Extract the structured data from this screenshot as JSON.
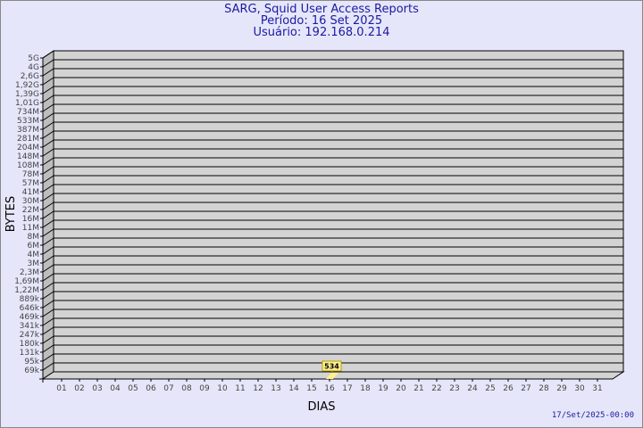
{
  "header": {
    "title": "SARG, Squid User Access Reports",
    "period": "Período: 16 Set 2025",
    "user": "Usuário: 192.168.0.214"
  },
  "footer": {
    "timestamp": "17/Set/2025-00:00"
  },
  "colors": {
    "title": "#1a1aa0",
    "background": "#e6e6fa",
    "plot": "#d3d3d3",
    "bar": "#ffef8f"
  },
  "chart_data": {
    "type": "bar",
    "xlabel": "DIAS",
    "ylabel": "BYTES",
    "y_scale": "log",
    "y_tick_labels": [
      "5G",
      "4G",
      "2,6G",
      "1,92G",
      "1,39G",
      "1,01G",
      "734M",
      "533M",
      "387M",
      "281M",
      "204M",
      "148M",
      "108M",
      "78M",
      "57M",
      "41M",
      "30M",
      "22M",
      "16M",
      "11M",
      "8M",
      "6M",
      "4M",
      "3M",
      "2,3M",
      "1,69M",
      "1,22M",
      "889k",
      "646k",
      "469k",
      "341k",
      "247k",
      "180k",
      "131k",
      "95k",
      "69k"
    ],
    "categories": [
      "01",
      "02",
      "03",
      "04",
      "05",
      "06",
      "07",
      "08",
      "09",
      "10",
      "11",
      "12",
      "13",
      "14",
      "15",
      "16",
      "17",
      "18",
      "19",
      "20",
      "21",
      "22",
      "23",
      "24",
      "25",
      "26",
      "27",
      "28",
      "29",
      "30",
      "31"
    ],
    "values": [
      0,
      0,
      0,
      0,
      0,
      0,
      0,
      0,
      0,
      0,
      0,
      0,
      0,
      0,
      0,
      534,
      0,
      0,
      0,
      0,
      0,
      0,
      0,
      0,
      0,
      0,
      0,
      0,
      0,
      0,
      0
    ],
    "data_labels": [
      {
        "x": "16",
        "label": "534"
      }
    ],
    "grid": true,
    "legend": "none"
  }
}
